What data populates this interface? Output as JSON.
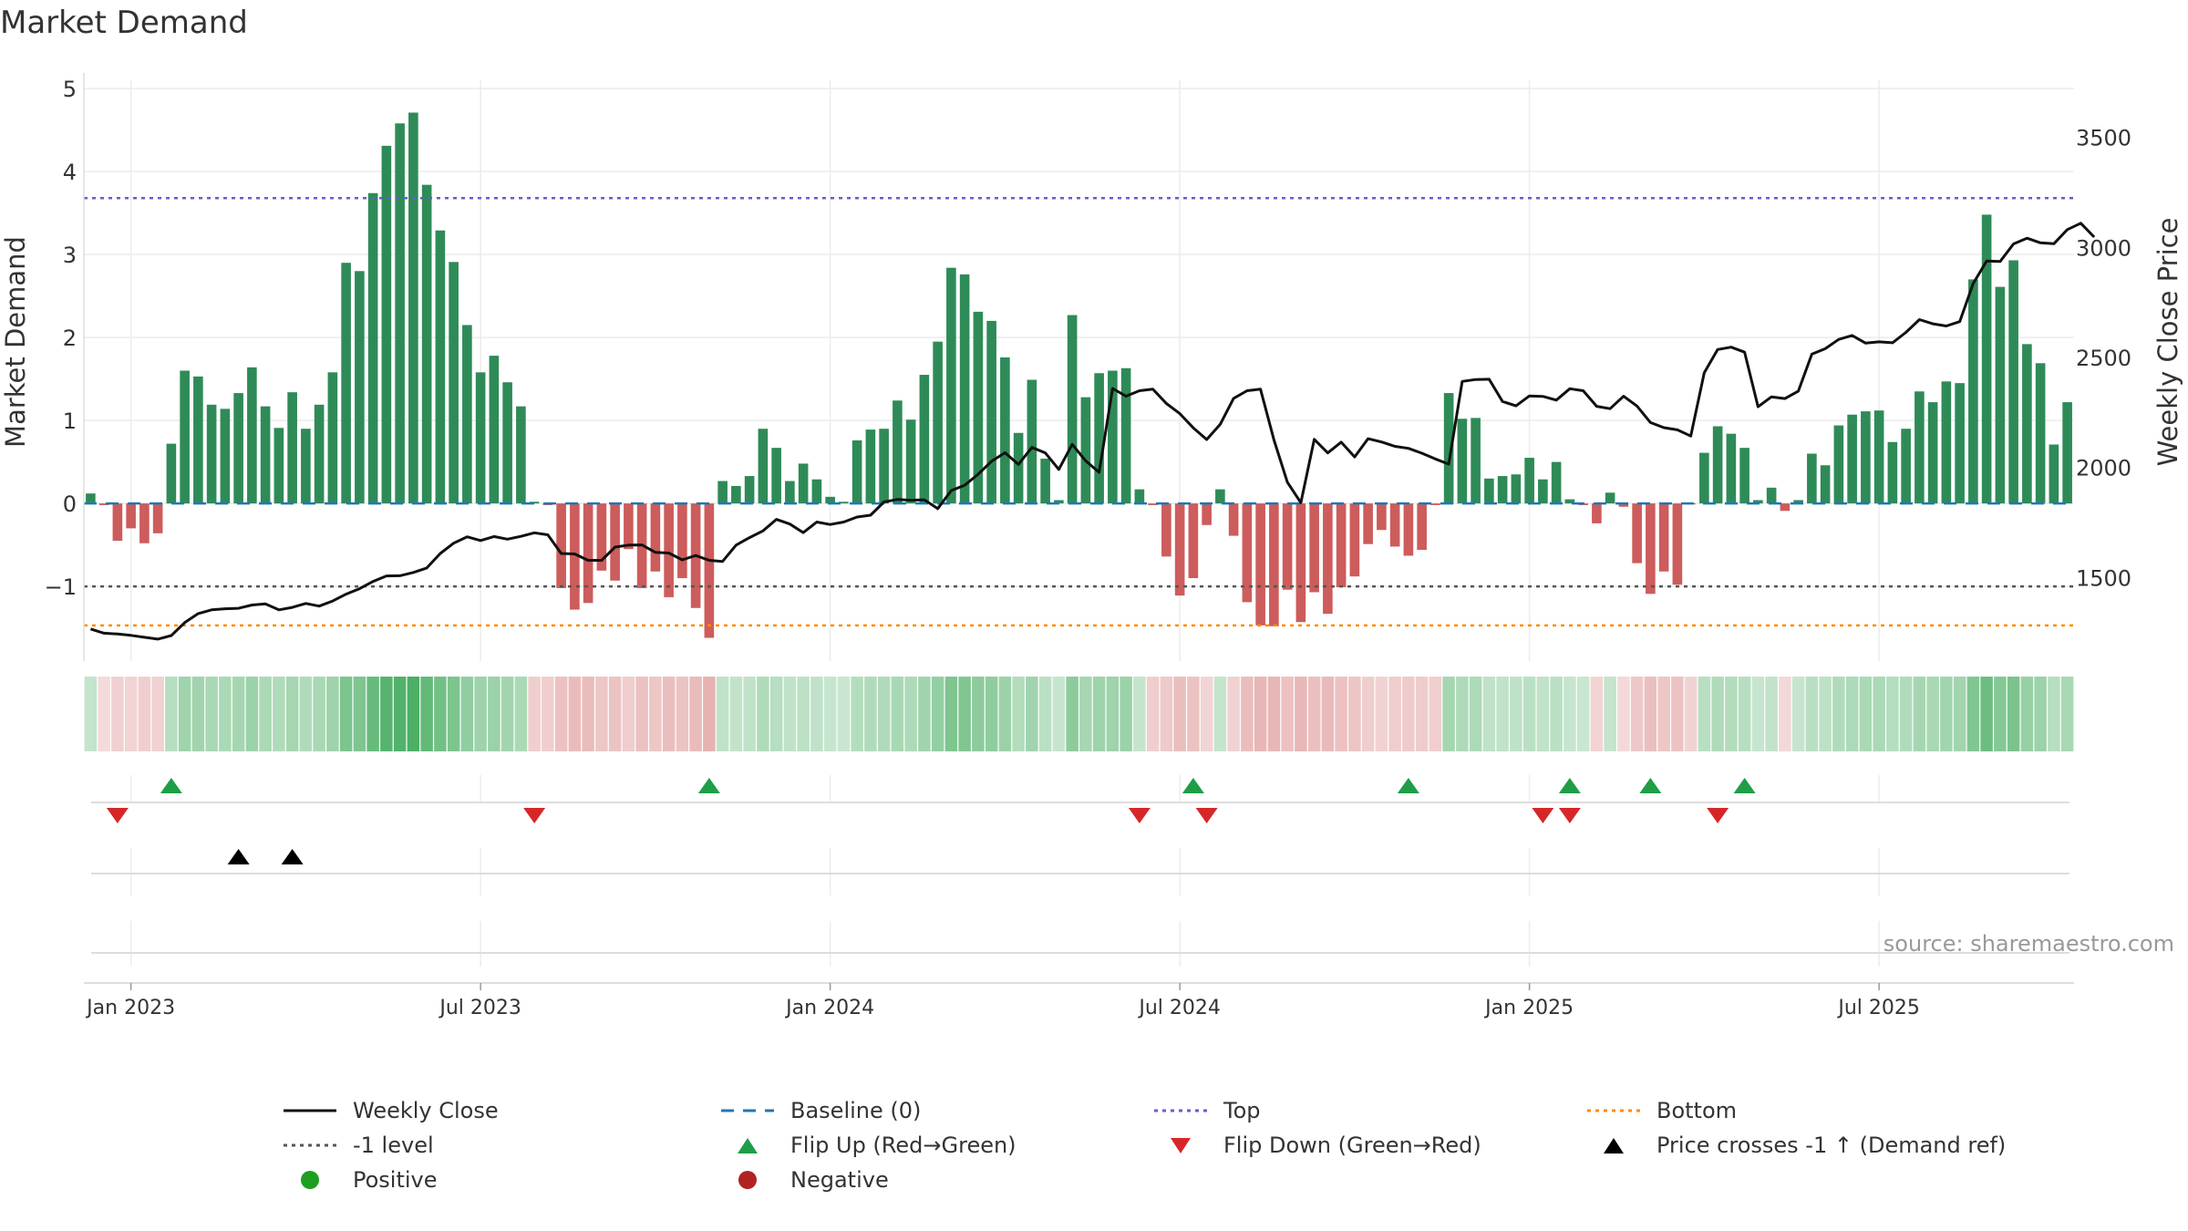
{
  "title": "Market Demand",
  "source": "source: sharemaestro.com",
  "colors": {
    "positive_bar": "#2e8b57",
    "negative_bar": "#cd5c5c",
    "price_line": "#111111",
    "baseline": "#1f77b4",
    "top": "#6a5acd",
    "bottom": "#ff8c00",
    "minus_one": "#555555",
    "flip_up": "#1e9e47",
    "flip_down": "#d62728",
    "cross": "#000000",
    "strip_pos_base": "#7fc67f",
    "strip_neg_base": "#e8a0a0"
  },
  "legend": [
    {
      "label": "Weekly Close",
      "symbol": "line",
      "color": "#111111",
      "dash": ""
    },
    {
      "label": "Baseline (0)",
      "symbol": "line",
      "color": "#1f77b4",
      "dash": "14 10"
    },
    {
      "label": "Top",
      "symbol": "line",
      "color": "#6a5acd",
      "dash": "4 5"
    },
    {
      "label": "Bottom",
      "symbol": "line",
      "color": "#ff8c00",
      "dash": "4 5"
    },
    {
      "label": "-1 level",
      "symbol": "line",
      "color": "#555555",
      "dash": "4 5"
    },
    {
      "label": "Flip Up (Red→Green)",
      "symbol": "tri-up",
      "color": "#1e9e47"
    },
    {
      "label": "Flip Down (Green→Red)",
      "symbol": "tri-down",
      "color": "#d62728"
    },
    {
      "label": "Price crosses -1 ↑ (Demand ref)",
      "symbol": "tri-up",
      "color": "#000000"
    },
    {
      "label": "Positive",
      "symbol": "circle",
      "color": "#1e9e1e"
    },
    {
      "label": "Negative",
      "symbol": "circle",
      "color": "#b22222"
    }
  ],
  "chart_data": {
    "type": "bar",
    "title": "Market Demand",
    "xlabel": "",
    "ylabel": "Market Demand",
    "y2label": "Weekly Close Price",
    "ylim": [
      -1.9,
      5.1
    ],
    "y2lim": [
      1120,
      3760
    ],
    "yticks": [
      5,
      4,
      3,
      2,
      1,
      0,
      -1
    ],
    "ytick_labels": [
      "5",
      "4",
      "3",
      "2",
      "1",
      "0",
      "−1"
    ],
    "y2ticks": [
      3500,
      3000,
      2500,
      2000,
      1500
    ],
    "y2tick_labels": [
      "3500",
      "3000",
      "2500",
      "2000",
      "1500"
    ],
    "x_start": "2022-12-12",
    "week_step": 1,
    "xticks": [
      {
        "week": 3,
        "label": "Jan 2023"
      },
      {
        "week": 29,
        "label": "Jul 2023"
      },
      {
        "week": 55,
        "label": "Jan 2024"
      },
      {
        "week": 81,
        "label": "Jul 2024"
      },
      {
        "week": 107,
        "label": "Jan 2025"
      },
      {
        "week": 133,
        "label": "Jul 2025"
      }
    ],
    "reference_lines": {
      "baseline": 0,
      "top": 3.68,
      "bottom": -1.47,
      "minus_one": -1
    },
    "demand": [
      0.12,
      -0.02,
      -0.45,
      -0.3,
      -0.48,
      -0.36,
      0.72,
      1.6,
      1.53,
      1.19,
      1.14,
      1.33,
      1.64,
      1.17,
      0.91,
      1.34,
      0.9,
      1.19,
      1.58,
      2.9,
      2.8,
      3.74,
      4.31,
      4.58,
      4.71,
      3.84,
      3.29,
      2.91,
      2.15,
      1.58,
      1.78,
      1.46,
      1.17,
      0.02,
      -0.02,
      -1.02,
      -1.28,
      -1.2,
      -0.81,
      -0.93,
      -0.55,
      -1.02,
      -0.82,
      -1.13,
      -0.9,
      -1.26,
      -1.62,
      0.27,
      0.21,
      0.33,
      0.9,
      0.67,
      0.27,
      0.48,
      0.29,
      0.08,
      0.02,
      0.76,
      0.89,
      0.9,
      1.24,
      1.01,
      1.55,
      1.95,
      2.84,
      2.76,
      2.31,
      2.2,
      1.76,
      0.85,
      1.49,
      0.54,
      0.04,
      2.27,
      1.28,
      1.57,
      1.6,
      1.63,
      0.17,
      -0.02,
      -0.64,
      -1.11,
      -0.9,
      -0.26,
      0.17,
      -0.39,
      -1.19,
      -1.47,
      -1.48,
      -1.04,
      -1.43,
      -1.07,
      -1.33,
      -1.01,
      -0.88,
      -0.49,
      -0.32,
      -0.52,
      -0.63,
      -0.56,
      -0.02,
      1.33,
      1.02,
      1.03,
      0.3,
      0.33,
      0.35,
      0.55,
      0.29,
      0.5,
      0.05,
      -0.02,
      -0.24,
      0.13,
      -0.04,
      -0.72,
      -1.09,
      -0.82,
      -0.98,
      -0.01,
      0.61,
      0.93,
      0.84,
      0.67,
      0.04,
      0.19,
      -0.09,
      0.04,
      0.6,
      0.46,
      0.94,
      1.07,
      1.11,
      1.12,
      0.74,
      0.9,
      1.35,
      1.22,
      1.47,
      1.45,
      2.7,
      3.48,
      2.61,
      2.93,
      1.92,
      1.69,
      0.71,
      1.22
    ],
    "close": [
      1266,
      1247,
      1243,
      1237,
      1228,
      1220,
      1236,
      1295,
      1336,
      1353,
      1358,
      1360,
      1375,
      1380,
      1353,
      1364,
      1382,
      1370,
      1393,
      1424,
      1449,
      1482,
      1507,
      1508,
      1523,
      1543,
      1609,
      1656,
      1685,
      1668,
      1686,
      1674,
      1687,
      1703,
      1694,
      1609,
      1607,
      1578,
      1578,
      1638,
      1647,
      1648,
      1614,
      1611,
      1580,
      1600,
      1578,
      1573,
      1647,
      1681,
      1712,
      1764,
      1743,
      1704,
      1752,
      1741,
      1752,
      1775,
      1783,
      1843,
      1855,
      1851,
      1853,
      1813,
      1895,
      1919,
      1969,
      2028,
      2067,
      2014,
      2091,
      2066,
      1991,
      2105,
      2030,
      1978,
      2359,
      2324,
      2349,
      2356,
      2291,
      2245,
      2180,
      2127,
      2196,
      2314,
      2349,
      2356,
      2125,
      1933,
      1840,
      2128,
      2066,
      2115,
      2048,
      2131,
      2116,
      2096,
      2087,
      2065,
      2039,
      2015,
      2391,
      2400,
      2401,
      2300,
      2280,
      2325,
      2323,
      2306,
      2358,
      2349,
      2278,
      2267,
      2324,
      2279,
      2204,
      2181,
      2171,
      2143,
      2431,
      2536,
      2547,
      2524,
      2276,
      2321,
      2313,
      2347,
      2515,
      2540,
      2582,
      2600,
      2565,
      2571,
      2567,
      2614,
      2672,
      2653,
      2643,
      2663,
      2836,
      2938,
      2936,
      3016,
      3042,
      3021,
      3017,
      3081,
      3110,
      3047
    ],
    "strip_values": [
      0.12,
      -0.02,
      -0.45,
      -0.3,
      -0.48,
      -0.36,
      0.72,
      1.6,
      1.53,
      1.19,
      1.14,
      1.33,
      1.64,
      1.17,
      0.91,
      1.34,
      0.9,
      1.19,
      1.58,
      2.9,
      2.8,
      3.74,
      4.31,
      4.58,
      4.71,
      3.84,
      3.29,
      2.91,
      2.15,
      1.58,
      1.78,
      1.46,
      1.17,
      -0.5,
      -0.5,
      -1.02,
      -1.28,
      -1.2,
      -0.81,
      -0.93,
      -0.55,
      -1.02,
      -0.82,
      -1.13,
      -0.9,
      -1.26,
      -1.62,
      0.27,
      0.21,
      0.33,
      0.9,
      0.67,
      0.27,
      0.48,
      0.29,
      0.08,
      0.02,
      0.76,
      0.89,
      0.9,
      1.24,
      1.01,
      1.55,
      1.95,
      2.84,
      2.76,
      2.31,
      2.2,
      1.76,
      0.85,
      1.49,
      0.54,
      0.04,
      2.27,
      1.28,
      1.57,
      1.6,
      1.63,
      0.17,
      -0.5,
      -0.64,
      -1.11,
      -0.9,
      -0.26,
      0.17,
      -0.39,
      -1.19,
      -1.47,
      -1.48,
      -1.04,
      -1.43,
      -1.07,
      -1.33,
      -1.01,
      -0.88,
      -0.49,
      -0.32,
      -0.52,
      -0.63,
      -0.56,
      -0.5,
      1.33,
      1.02,
      1.03,
      0.3,
      0.33,
      0.35,
      0.55,
      0.29,
      0.5,
      0.05,
      0.02,
      -0.24,
      0.13,
      -0.04,
      -0.72,
      -1.09,
      -0.82,
      -0.98,
      -0.3,
      0.61,
      0.93,
      0.84,
      0.67,
      0.04,
      0.19,
      -0.09,
      0.04,
      0.6,
      0.46,
      0.94,
      1.07,
      1.11,
      1.12,
      0.74,
      0.9,
      1.35,
      1.22,
      1.47,
      1.45,
      2.7,
      3.48,
      2.61,
      2.93,
      1.92,
      1.69,
      0.71,
      1.22
    ],
    "flip_up_weeks": [
      6,
      46,
      82,
      98,
      110,
      116,
      123
    ],
    "flip_down_weeks": [
      2,
      33,
      78,
      83,
      108,
      110,
      121
    ],
    "price_cross_weeks": [
      11,
      15
    ]
  }
}
